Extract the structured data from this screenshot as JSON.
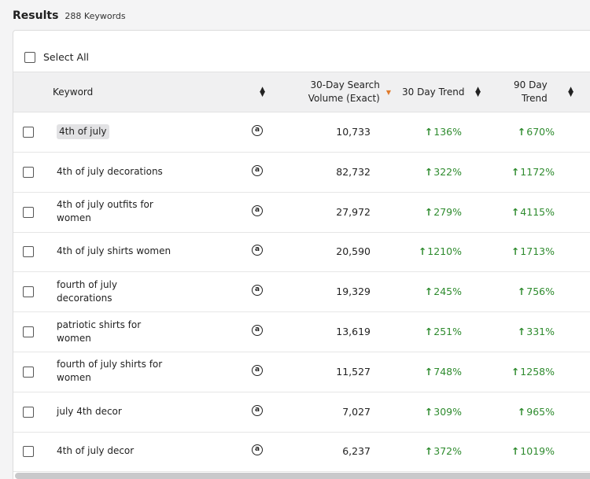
{
  "header": {
    "title": "Results",
    "count": "288 Keywords"
  },
  "select_all_label": "Select All",
  "columns": {
    "keyword": "Keyword",
    "volume_line1": "30-Day Search",
    "volume_line2": "Volume (Exact)",
    "trend30": "30 Day Trend",
    "trend90_line1": "90 Day",
    "trend90_line2": "Trend"
  },
  "rows": [
    {
      "keyword": "4th of july",
      "volume": "10,733",
      "trend30": "136%",
      "trend90": "670%"
    },
    {
      "keyword": "4th of july decorations",
      "volume": "82,732",
      "trend30": "322%",
      "trend90": "1172%"
    },
    {
      "keyword": "4th of july outfits for women",
      "volume": "27,972",
      "trend30": "279%",
      "trend90": "4115%"
    },
    {
      "keyword": "4th of july shirts women",
      "volume": "20,590",
      "trend30": "1210%",
      "trend90": "1713%"
    },
    {
      "keyword": "fourth of july decorations",
      "volume": "19,329",
      "trend30": "245%",
      "trend90": "756%"
    },
    {
      "keyword": "patriotic shirts for women",
      "volume": "13,619",
      "trend30": "251%",
      "trend90": "331%"
    },
    {
      "keyword": "fourth of july shirts for women",
      "volume": "11,527",
      "trend30": "748%",
      "trend90": "1258%"
    },
    {
      "keyword": "july 4th decor",
      "volume": "7,027",
      "trend30": "309%",
      "trend90": "965%"
    },
    {
      "keyword": "4th of july decor",
      "volume": "6,237",
      "trend30": "372%",
      "trend90": "1019%"
    }
  ],
  "colors": {
    "trend_up": "#2e8b2e",
    "active_sort": "#e07b2c"
  },
  "icons": {
    "amazon": "amazon-icon",
    "trend": "arrow-up-icon"
  }
}
